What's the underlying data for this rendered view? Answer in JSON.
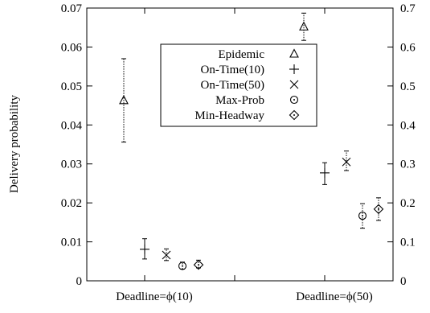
{
  "chart_data": {
    "type": "scatter",
    "title": "",
    "xlabel": "",
    "ylabel": "Delivery probability",
    "categories": [
      "Deadline=ϕ(10)",
      "Deadline=ϕ(50)"
    ],
    "ylim": [
      0,
      0.07
    ],
    "yticks": [
      "0",
      "0.01",
      "0.02",
      "0.03",
      "0.04",
      "0.05",
      "0.06",
      "0.07"
    ],
    "y2lim": [
      0,
      0.7
    ],
    "y2ticks": [
      "0",
      "0.1",
      "0.2",
      "0.3",
      "0.4",
      "0.5",
      "0.6",
      "0.7"
    ],
    "grid": false,
    "legend_position": "top-center",
    "series": [
      {
        "name": "Epidemic",
        "marker": "triangle",
        "axis": "left",
        "errorbar_style": "dotted",
        "values": [
          0.0463,
          0.0652
        ],
        "err_low": [
          0.0356,
          0.0617
        ],
        "err_high": [
          0.057,
          0.0687
        ]
      },
      {
        "name": "On-Time(10)",
        "marker": "plus",
        "axis": "left",
        "errorbar_style": "solid",
        "values": [
          0.0081,
          0.0277
        ],
        "err_low": [
          0.0056,
          0.0247
        ],
        "err_high": [
          0.0108,
          0.0303
        ]
      },
      {
        "name": "On-Time(50)",
        "marker": "cross",
        "axis": "left",
        "errorbar_style": "dotted",
        "values": [
          0.0066,
          0.0305
        ],
        "err_low": [
          0.0052,
          0.0283
        ],
        "err_high": [
          0.0082,
          0.0333
        ]
      },
      {
        "name": "Max-Prob",
        "marker": "circle-dot",
        "axis": "left",
        "errorbar_style": "dotted",
        "values": [
          0.0038,
          0.0167
        ],
        "err_low": [
          0.003,
          0.0135
        ],
        "err_high": [
          0.0048,
          0.0198
        ]
      },
      {
        "name": "Min-Headway",
        "marker": "diamond-dot",
        "axis": "left",
        "errorbar_style": "dotted",
        "values": [
          0.0041,
          0.0184
        ],
        "err_low": [
          0.0033,
          0.0155
        ],
        "err_high": [
          0.0053,
          0.0213
        ]
      }
    ]
  }
}
